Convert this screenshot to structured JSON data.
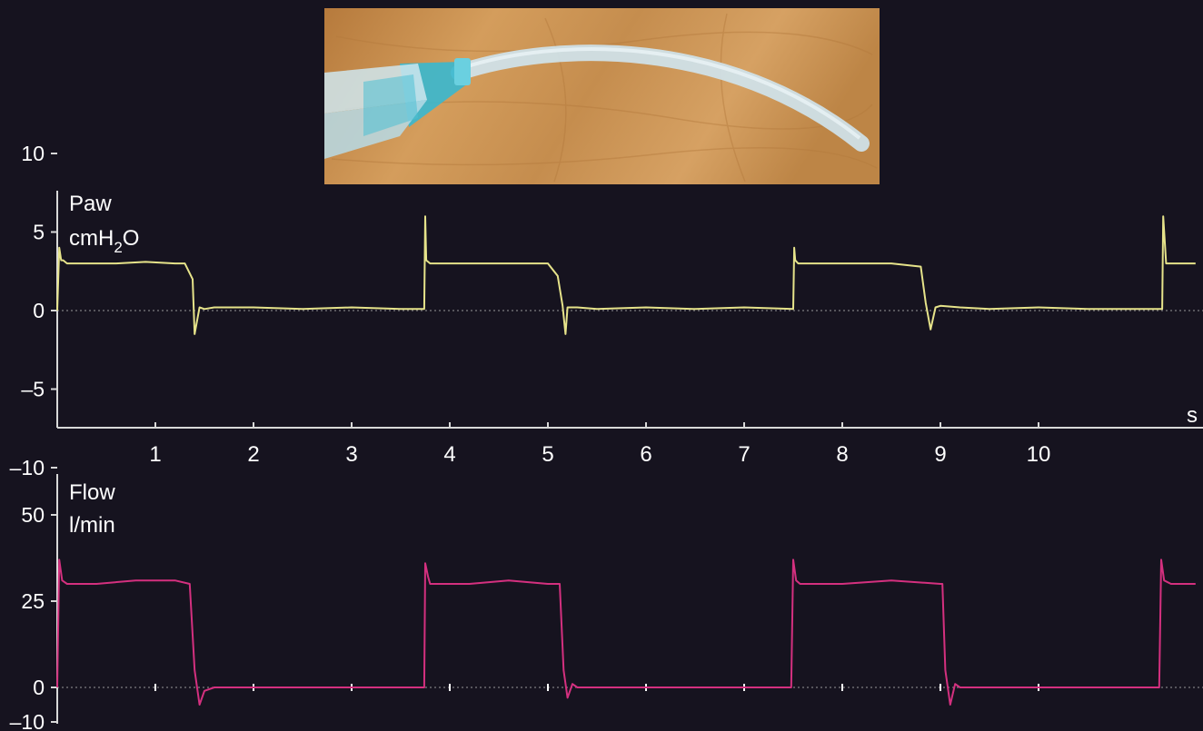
{
  "photo": {
    "description_icon": "tube-photo-icon"
  },
  "colors": {
    "background": "#16131f",
    "axis": "#d8d8d8",
    "pressure": "#e6e38a",
    "flow": "#d4307f",
    "baseline": "#cfcfcf",
    "photo_wood": "#c9924f",
    "tube": "#cfe3ec",
    "tube_tip": "#39b8cf"
  },
  "chart_data": [
    {
      "type": "line",
      "label_lines": [
        "Paw",
        "cmH"
      ],
      "label_sub": "2",
      "label_tail": "O",
      "y_ticks": [
        "10",
        "5",
        "0",
        "–5",
        "–10"
      ],
      "y_tick_values": [
        10,
        5,
        0,
        -5,
        -10
      ],
      "ylim": [
        -15,
        15
      ],
      "x_unit": "s",
      "x_ticks": [
        "1",
        "2",
        "3",
        "4",
        "5",
        "6",
        "7",
        "8",
        "9",
        "10"
      ],
      "x_tick_values": [
        1,
        2,
        3,
        4,
        5,
        6,
        7,
        8,
        9,
        10
      ],
      "xlim": [
        0,
        11.6
      ],
      "series": [
        {
          "x": [
            0,
            0.02,
            0.04,
            0.06,
            0.1,
            0.3,
            0.6,
            0.9,
            1.2,
            1.3,
            1.38,
            1.4,
            1.45,
            1.5,
            1.6,
            2.0,
            2.5,
            3.0,
            3.5,
            3.74,
            3.75,
            3.76,
            3.8,
            4.0,
            4.5,
            5.0,
            5.1,
            5.15,
            5.18,
            5.2,
            5.3,
            5.5,
            6.0,
            6.5,
            7.0,
            7.5,
            7.51,
            7.52,
            7.55,
            7.6,
            8.0,
            8.5,
            8.8,
            8.85,
            8.9,
            8.95,
            9.0,
            9.2,
            9.5,
            10.0,
            10.5,
            11.0,
            11.26,
            11.27,
            11.3,
            11.4,
            11.6
          ],
          "y": [
            0,
            4.0,
            3.2,
            3.2,
            3.0,
            3.0,
            3.0,
            3.1,
            3.0,
            3.0,
            2.0,
            -1.5,
            0.2,
            0.1,
            0.2,
            0.2,
            0.1,
            0.2,
            0.1,
            0.1,
            6.0,
            3.2,
            3.0,
            3.0,
            3.0,
            3.0,
            2.2,
            0.3,
            -1.5,
            0.2,
            0.2,
            0.1,
            0.2,
            0.1,
            0.2,
            0.1,
            4.0,
            3.2,
            3.0,
            3.0,
            3.0,
            3.0,
            2.8,
            0.5,
            -1.2,
            0.2,
            0.3,
            0.2,
            0.1,
            0.2,
            0.1,
            0.1,
            0.1,
            6.0,
            3.0,
            3.0,
            3.0
          ]
        }
      ]
    },
    {
      "type": "line",
      "label_lines": [
        "Flow",
        "l/min"
      ],
      "y_ticks": [
        "50",
        "25",
        "0",
        "–10"
      ],
      "y_tick_values": [
        50,
        25,
        0,
        -10
      ],
      "ylim": [
        -12,
        60
      ],
      "x_ticks": [
        "1",
        "2",
        "3",
        "4",
        "5",
        "6",
        "7",
        "8",
        "9",
        "10"
      ],
      "x_tick_values": [
        1,
        2,
        3,
        4,
        5,
        6,
        7,
        8,
        9,
        10
      ],
      "xlim": [
        0,
        11.6
      ],
      "series": [
        {
          "x": [
            0,
            0.02,
            0.05,
            0.1,
            0.4,
            0.8,
            1.2,
            1.35,
            1.4,
            1.45,
            1.5,
            1.6,
            2.0,
            2.5,
            3.0,
            3.5,
            3.74,
            3.75,
            3.78,
            3.8,
            4.2,
            4.6,
            5.0,
            5.12,
            5.16,
            5.2,
            5.25,
            5.3,
            5.4,
            6.0,
            6.5,
            7.0,
            7.48,
            7.5,
            7.53,
            7.57,
            8.0,
            8.5,
            9.0,
            9.02,
            9.05,
            9.1,
            9.15,
            9.2,
            9.3,
            10.0,
            10.5,
            11.0,
            11.23,
            11.25,
            11.28,
            11.35,
            11.6
          ],
          "y": [
            0,
            37,
            31,
            30,
            30,
            31,
            31,
            30,
            5,
            -5,
            -1,
            0,
            0,
            0,
            0,
            0,
            0,
            36,
            32,
            30,
            30,
            31,
            30,
            30,
            5,
            -3,
            1,
            0,
            0,
            0,
            0,
            0,
            0,
            37,
            31,
            30,
            30,
            31,
            30,
            30,
            5,
            -5,
            1,
            0,
            0,
            0,
            0,
            0,
            0,
            37,
            31,
            30,
            30
          ]
        }
      ]
    }
  ]
}
